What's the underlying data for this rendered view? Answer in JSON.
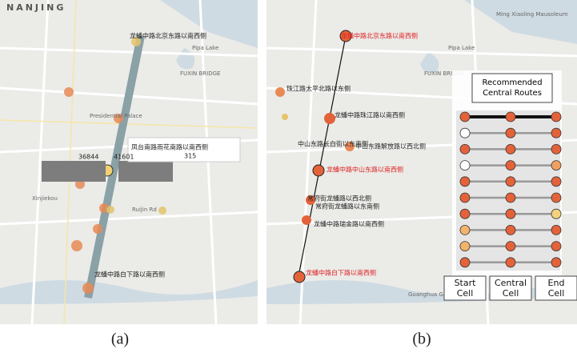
{
  "panel_a": {
    "city": "NANJING",
    "places": [
      "Presidential Palace",
      "FUXIN BRIDGE",
      "Pipa Lake",
      "Xinjiekou",
      "Ruijin Rd"
    ],
    "stations": [
      "龙蟠中路北京东路以南西侧",
      "凤台南路雨花南路以南西侧",
      "龙蟠中路白下路以南西侧"
    ],
    "popup_values": [
      36844,
      41601,
      315
    ],
    "caption": "(a)"
  },
  "panel_b": {
    "places": [
      "Ming Xiaoling Mausoleum",
      "Pipa Lake",
      "FUXIN BRIDGE",
      "Guanghua Gate"
    ],
    "stations": [
      "龙蟠中路北京东路以南西侧",
      "珠江路太平北路以东侧",
      "龙蟠中路珠江路以南西侧",
      "中山东路长白街以东南侧",
      "中山东路解放路以西北侧",
      "龙蟠中路中山东路以南西侧",
      "常府街龙蟠路以西北侧",
      "常府街龙蟠路以东南侧",
      "龙蟠中路瑞金路以南西侧",
      "龙蟠中路白下路以南西侧"
    ],
    "legend_title": "Recommended Central Routes",
    "columns": [
      "Start Cell",
      "Central Cell",
      "End Cell"
    ],
    "routes": [
      [
        "#e4623a",
        "#e4623a",
        "#e4623a"
      ],
      [
        "#ffffff",
        "#e4623a",
        "#e4623a"
      ],
      [
        "#e4623a",
        "#e4623a",
        "#e4623a"
      ],
      [
        "#ffffff",
        "#e4623a",
        "#f0a060"
      ],
      [
        "#e4623a",
        "#e4623a",
        "#e4623a"
      ],
      [
        "#e4623a",
        "#e4623a",
        "#e4623a"
      ],
      [
        "#e4623a",
        "#e4623a",
        "#f3d27e"
      ],
      [
        "#f2b36b",
        "#e4623a",
        "#e4623a"
      ],
      [
        "#f2b36b",
        "#e4623a",
        "#e4623a"
      ],
      [
        "#e4623a",
        "#e4623a",
        "#e4623a"
      ]
    ],
    "caption": "(b)"
  }
}
